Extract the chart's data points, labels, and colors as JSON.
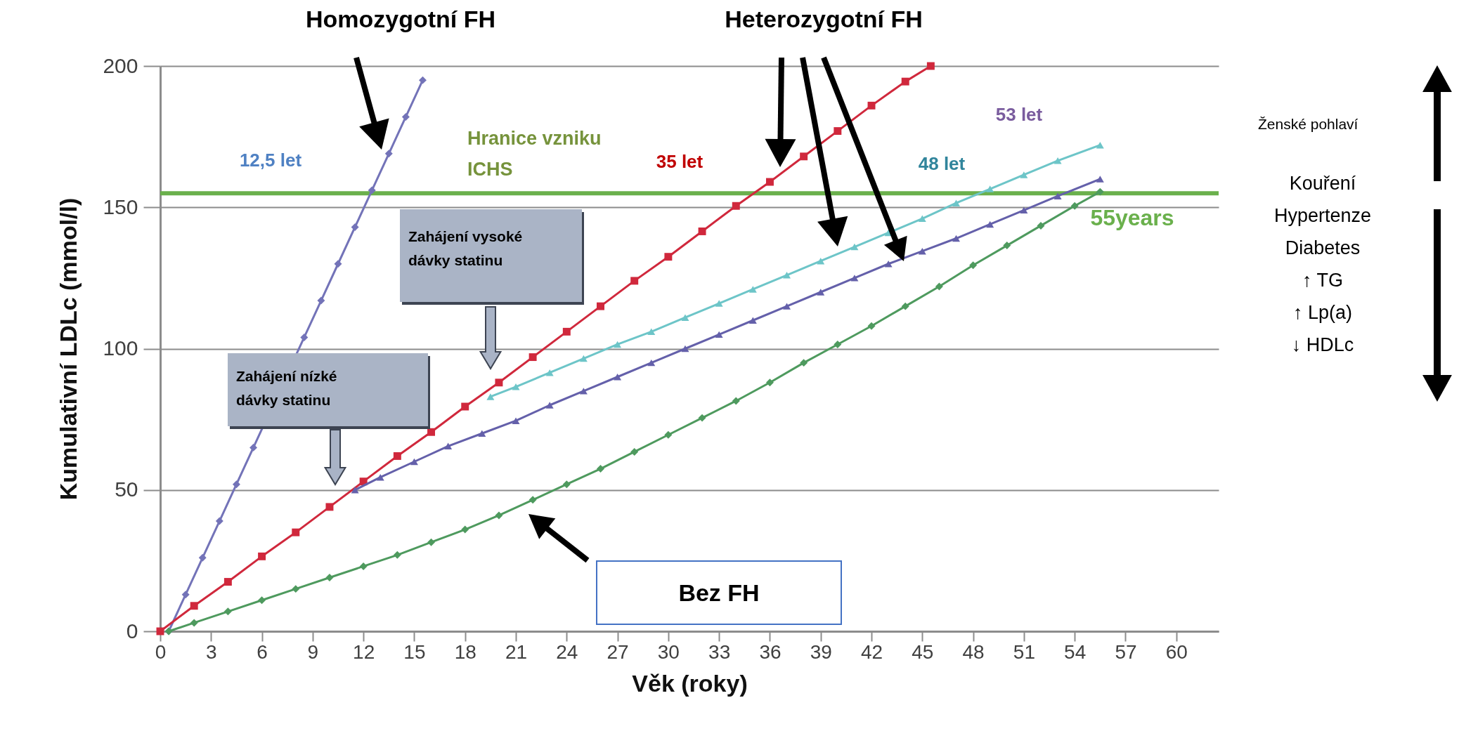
{
  "chart_data": {
    "type": "line",
    "xlabel": "Věk (roky)",
    "ylabel": "Kumulativní  LDLc (mmol/l)",
    "xlim": [
      0,
      62.5
    ],
    "xticks": [
      0,
      3,
      6,
      9,
      12,
      15,
      18,
      21,
      24,
      27,
      30,
      33,
      36,
      39,
      42,
      45,
      48,
      51,
      54,
      57,
      60
    ],
    "ylim": [
      0,
      200
    ],
    "yticks": [
      0,
      50,
      100,
      150,
      200
    ],
    "grid": "y",
    "line_style": "solid",
    "series": [
      {
        "color": "#7373b8",
        "marker": "diamond",
        "x": [
          0.5,
          1.5,
          2.5,
          3.5,
          4.5,
          5.5,
          6.5,
          7.5,
          8.5,
          9.5,
          10.5,
          11.5,
          12.5,
          13.5,
          14.5,
          15.5
        ],
        "values": [
          0,
          13,
          26,
          39,
          52,
          65,
          null,
          null,
          104,
          117,
          130,
          143,
          156,
          169,
          182,
          195
        ]
      },
      {
        "color": "#d0283c",
        "marker": "square",
        "x": [
          0,
          2,
          4,
          6,
          8,
          10,
          12,
          14,
          16,
          18,
          20,
          22,
          24,
          26,
          28,
          30,
          32,
          34,
          36,
          38,
          40,
          42,
          44,
          45.5
        ],
        "values": [
          0,
          9,
          17.5,
          26.5,
          35,
          44,
          53,
          62,
          70.5,
          79.5,
          88,
          97,
          106,
          115,
          124,
          132.5,
          141.5,
          150.5,
          159,
          168,
          177,
          186,
          194.5,
          200
        ]
      },
      {
        "color": "#6dc5c8",
        "marker": "triangle",
        "x": [
          19.5,
          21,
          23,
          25,
          27,
          29,
          31,
          33,
          35,
          37,
          39,
          41,
          43,
          45,
          47,
          49,
          51,
          53,
          55.5
        ],
        "values": [
          83,
          86.5,
          91.5,
          96.5,
          101.5,
          106,
          111,
          116,
          121,
          126,
          131,
          136,
          141,
          146,
          151.5,
          156.5,
          161.5,
          166.5,
          172
        ]
      },
      {
        "color": "#6460aa",
        "marker": "triangle",
        "x": [
          11.5,
          13,
          15,
          17,
          19,
          21,
          23,
          25,
          27,
          29,
          31,
          33,
          35,
          37,
          39,
          41,
          43,
          45,
          47,
          49,
          51,
          53,
          55.5
        ],
        "values": [
          50,
          54.5,
          60,
          65.5,
          70,
          74.5,
          80,
          85,
          90,
          95,
          100,
          105,
          110,
          115,
          120,
          125,
          130,
          134.5,
          139,
          144,
          149,
          154,
          160
        ]
      },
      {
        "color": "#4e9a5e",
        "marker": "diamond",
        "x": [
          0.5,
          2,
          4,
          6,
          8,
          10,
          12,
          14,
          16,
          18,
          20,
          22,
          24,
          26,
          28,
          30,
          32,
          34,
          36,
          38,
          40,
          42,
          44,
          46,
          48,
          50,
          52,
          54,
          55.5
        ],
        "values": [
          0,
          3,
          7,
          11,
          15,
          19,
          23,
          27,
          31.5,
          36,
          41,
          46.5,
          52,
          57.5,
          63.5,
          69.5,
          75.5,
          81.5,
          88,
          95,
          101.5,
          108,
          115,
          122,
          129.5,
          136.5,
          143.5,
          150.5,
          155.5
        ]
      }
    ],
    "ref_lines": [
      {
        "axis": "y",
        "value": 155,
        "label": "Hranice vzniku ICHS",
        "color": "#6ab04c",
        "line_style": "solid"
      }
    ],
    "annotations": [
      "Homozygotní FH",
      "Heterozygotní FH",
      "12,5 let",
      "35 let",
      "48 let",
      "53 let",
      "55years",
      "Zahájení nízké dávky statinu",
      "Zahájení vysoké dávky statinu",
      "Bez  FH",
      "Ženské pohlaví",
      "Kouření\nHypertenze\nDiabetes\n↑ TG\n↑ Lp(a)\n↓ HDLc"
    ]
  }
}
